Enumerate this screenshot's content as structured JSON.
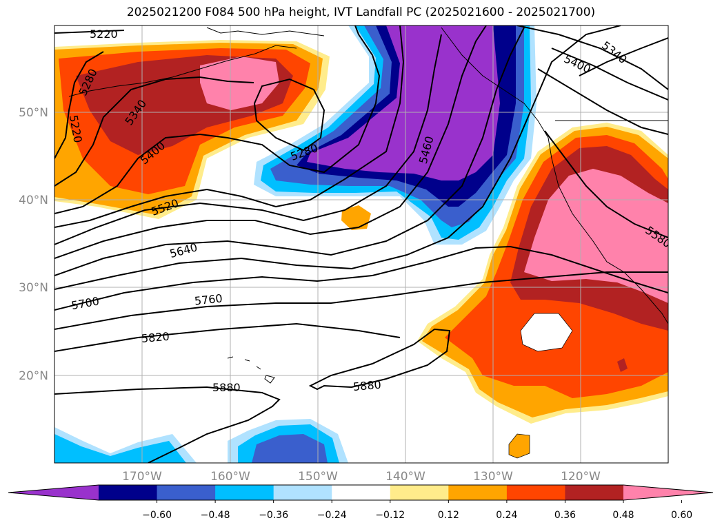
{
  "title": "2025021200 F084 500 hPa height, IVT Landfall PC (2025021600 - 2025021700)",
  "map": {
    "lon_labels": [
      "170°W",
      "160°W",
      "150°W",
      "140°W",
      "130°W",
      "120°W"
    ],
    "lat_labels": [
      "50°N",
      "40°N",
      "30°N",
      "20°N"
    ],
    "contour_labels": [
      "5220",
      "5220",
      "5280",
      "5340",
      "5340",
      "5400",
      "5400",
      "5280",
      "5460",
      "5520",
      "5580",
      "5640",
      "5700",
      "5760",
      "5820",
      "5880",
      "5880"
    ]
  },
  "colorbar": {
    "ticks": [
      "−0.60",
      "−0.48",
      "−0.36",
      "−0.24",
      "−0.12",
      "0.12",
      "0.24",
      "0.36",
      "0.48",
      "0.60"
    ],
    "colors": [
      "#9932cc",
      "#00008b",
      "#3a5fcd",
      "#00bfff",
      "#b0e2ff",
      "#ffffff",
      "#ffec8b",
      "#ffa500",
      "#ff4500",
      "#b22222",
      "#ff82ab"
    ]
  }
}
